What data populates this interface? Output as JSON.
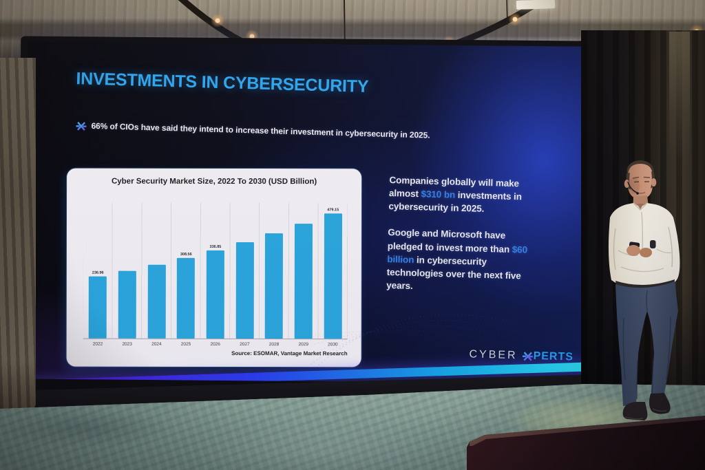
{
  "slide": {
    "title": "INVESTMENTS IN CYBERSECURITY",
    "bullet": {
      "icon": "cyberxperts-x-icon",
      "text": "66% of CIOs have said they intend to increase their investment in cybersecurity in 2025."
    },
    "stats": {
      "p1": {
        "pre": "Companies globally will make almost ",
        "highlight": "$310 bn",
        "post": " investments in cybersecurity in 2025."
      },
      "p2": {
        "pre": "Google and Microsoft have pledged to invest more than ",
        "highlight": "$60 billion",
        "post": " in cybersecurity technologies over the next five years."
      }
    },
    "logo": {
      "part1": "CYBER",
      "icon": "cyberxperts-x-logo-icon",
      "part2": "PERTS"
    },
    "colors": {
      "title_cyan": "#2da5f0",
      "stat_highlight_blue": "#2f82f2",
      "slide_glow_blue": "#1b2f8e",
      "led_strip_gradient": [
        "#5a10d8",
        "#2a3cf0",
        "#15a8e8",
        "#2fe0f2"
      ]
    }
  },
  "chart_data": {
    "type": "bar",
    "title": "Cyber Security Market Size, 2022 To 2030 (USD Billion)",
    "categories": [
      "2022",
      "2023",
      "2024",
      "2025",
      "2026",
      "2027",
      "2028",
      "2029",
      "2030"
    ],
    "values": [
      236.96,
      258.79,
      282.62,
      308.56,
      336.85,
      367.88,
      401.77,
      438.78,
      479.15
    ],
    "visible_value_labels": {
      "2022": "236.96",
      "2025": "308.56",
      "2026": "336.85",
      "2030": "479.15"
    },
    "unlabeled_values_estimated": true,
    "ylim": [
      0,
      500
    ],
    "xlabel": "",
    "ylabel": "",
    "legend": "none",
    "grid": "faint-vertical",
    "bar_color": "#29a7e0",
    "source": "Source: ESOMAR, Vantage Market Research"
  },
  "scene": {
    "setting_colors": {
      "ceiling_concrete": "#948a7a",
      "carpet_teal": "#7e988c",
      "curtain_dark": "#17151a",
      "curtain_brown": "#3f372c",
      "string_light_warm": "#ffc878"
    }
  }
}
